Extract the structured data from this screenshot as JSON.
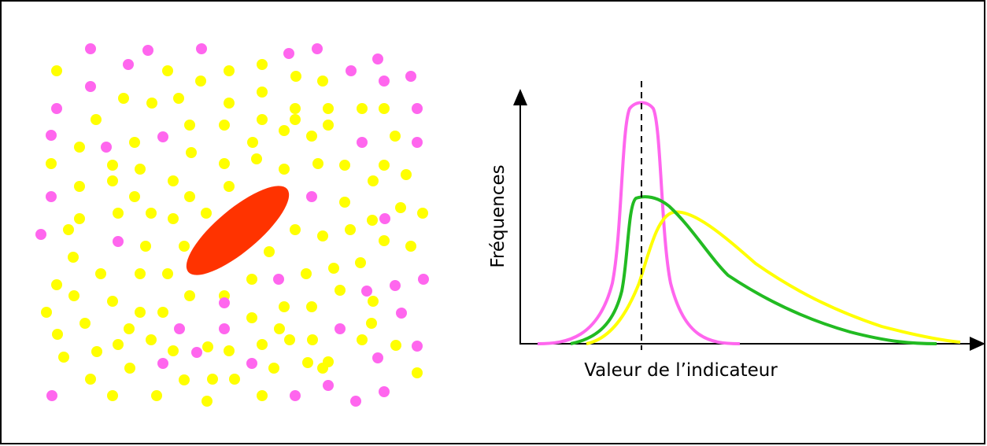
{
  "axis_labels": {
    "y": "Fréquences",
    "x": "Valeur de l’indicateur"
  }
}
